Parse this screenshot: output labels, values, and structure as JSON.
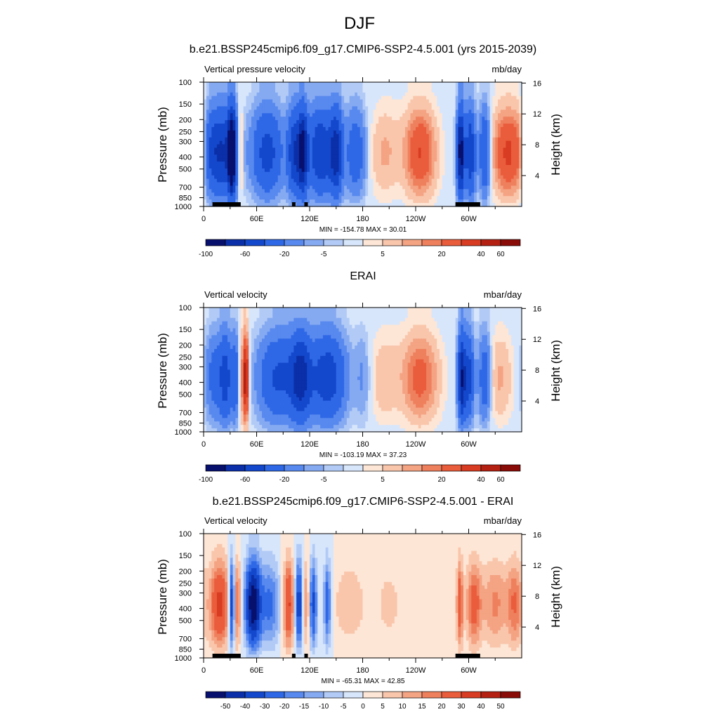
{
  "figure": {
    "title": "DJF",
    "panel1_title": "b.e21.BSSP245cmip6.f09_g17.CMIP6-SSP2-4.5.001 (yrs 2015-2039)",
    "panel2_title": "ERAI",
    "panel3_title": "b.e21.BSSP245cmip6.f09_g17.CMIP6-SSP2-4.5.001 - ERAI"
  },
  "colors": {
    "abs_palette": [
      "#08106e",
      "#0a2fa8",
      "#1448cc",
      "#2f68e6",
      "#5889ee",
      "#86aaf2",
      "#b2cbf6",
      "#d8e6fb",
      "#fde6d6",
      "#f9c6ac",
      "#f4a383",
      "#ef805e",
      "#ea5d3c",
      "#d83c22",
      "#b42112",
      "#8a0c08"
    ],
    "diff_palette": [
      "#08106e",
      "#0a2fa8",
      "#1448cc",
      "#2f68e6",
      "#5889ee",
      "#86aaf2",
      "#b2cbf6",
      "#d8e6fb",
      "#fde6d6",
      "#f9c6ac",
      "#f4a383",
      "#ef805e",
      "#ea5d3c",
      "#d83c22",
      "#b42112",
      "#8a0c08"
    ],
    "land": "#000000"
  },
  "chart_data": [
    {
      "type": "heatmap",
      "title": "b.e21.BSSP245cmip6.f09_g17.CMIP6-SSP2-4.5.001 (yrs 2015-2039)",
      "left_string": "Vertical pressure velocity",
      "right_string": "mb/day",
      "ylabel": "Pressure (mb)",
      "ylabel_right": "Height (km)",
      "x_ticks": [
        "0",
        "60E",
        "120E",
        "180",
        "120W",
        "60W"
      ],
      "x_tick_values": [
        0,
        60,
        120,
        180,
        240,
        300
      ],
      "xlim": [
        0,
        360
      ],
      "y_ticks": [
        "100",
        "150",
        "200",
        "250",
        "300",
        "400",
        "500",
        "700",
        "850",
        "1000"
      ],
      "y_tick_values": [
        100,
        150,
        200,
        250,
        300,
        400,
        500,
        700,
        850,
        1000
      ],
      "ylim": [
        1000,
        100
      ],
      "y_scale": "log",
      "height_ticks": [
        "4",
        "8",
        "12",
        "16"
      ],
      "height_tick_values": [
        4,
        8,
        12,
        16
      ],
      "min_max": "MIN = -154.78  MAX =  30.01",
      "levels": [
        -100,
        -80,
        -60,
        -40,
        -20,
        -10,
        -5,
        -2,
        2,
        5,
        10,
        15,
        20,
        30,
        40,
        60,
        80
      ],
      "colorbar_labels": [
        "-100",
        "-60",
        "-20",
        "-5",
        "5",
        "20",
        "40",
        "60"
      ],
      "colorbar_label_values": [
        -100,
        -60,
        -20,
        -5,
        5,
        20,
        40,
        60
      ],
      "features": [
        {
          "lon": 7,
          "w": 7,
          "amp": -25
        },
        {
          "lon": 22,
          "w": 11,
          "amp": -55
        },
        {
          "lon": 32,
          "w": 3,
          "amp": -95
        },
        {
          "lon": 42,
          "w": 2.5,
          "amp": 18
        },
        {
          "lon": 72,
          "w": 12,
          "amp": -45
        },
        {
          "lon": 102,
          "w": 5,
          "amp": -50
        },
        {
          "lon": 112,
          "w": 4,
          "amp": -80
        },
        {
          "lon": 132,
          "w": 10,
          "amp": -55
        },
        {
          "lon": 150,
          "w": 5,
          "amp": -60
        },
        {
          "lon": 172,
          "w": 8,
          "amp": -30
        },
        {
          "lon": 205,
          "w": 12,
          "amp": 10
        },
        {
          "lon": 245,
          "w": 12,
          "amp": 28
        },
        {
          "lon": 291,
          "w": 3,
          "amp": -85
        },
        {
          "lon": 302,
          "w": 4,
          "amp": -55
        },
        {
          "lon": 318,
          "w": 4,
          "amp": -40
        },
        {
          "lon": 345,
          "w": 12,
          "amp": 30
        },
        {
          "lon": 358,
          "w": 4,
          "amp": 12
        }
      ],
      "land": [
        [
          10,
          42
        ],
        [
          100,
          104
        ],
        [
          114,
          118
        ],
        [
          285,
          313
        ]
      ]
    },
    {
      "type": "heatmap",
      "title": "ERAI",
      "left_string": "Vertical velocity",
      "right_string": "mbar/day",
      "ylabel": "Pressure (mb)",
      "ylabel_right": "Height (km)",
      "x_ticks": [
        "0",
        "60E",
        "120E",
        "180",
        "120W",
        "60W"
      ],
      "x_tick_values": [
        0,
        60,
        120,
        180,
        240,
        300
      ],
      "xlim": [
        0,
        360
      ],
      "y_ticks": [
        "100",
        "150",
        "200",
        "250",
        "300",
        "400",
        "500",
        "700",
        "850",
        "1000"
      ],
      "y_tick_values": [
        100,
        150,
        200,
        250,
        300,
        400,
        500,
        700,
        850,
        1000
      ],
      "ylim": [
        1000,
        100
      ],
      "y_scale": "log",
      "height_ticks": [
        "4",
        "8",
        "12",
        "16"
      ],
      "height_tick_values": [
        4,
        8,
        12,
        16
      ],
      "min_max": "MIN = -103.19  MAX =  37.23",
      "levels": [
        -100,
        -80,
        -60,
        -40,
        -20,
        -10,
        -5,
        -2,
        2,
        5,
        10,
        15,
        20,
        30,
        40,
        60,
        80
      ],
      "colorbar_labels": [
        "-100",
        "-60",
        "-20",
        "-5",
        "5",
        "20",
        "40",
        "60"
      ],
      "colorbar_label_values": [
        -100,
        -60,
        -20,
        -5,
        5,
        20,
        40,
        60
      ],
      "features": [
        {
          "lon": 12,
          "w": 7,
          "amp": -25
        },
        {
          "lon": 25,
          "w": 5,
          "amp": -45
        },
        {
          "lon": 36,
          "w": 3,
          "amp": -30
        },
        {
          "lon": 45,
          "w": 4,
          "amp": 18
        },
        {
          "lon": 48,
          "w": 2,
          "amp": 35
        },
        {
          "lon": 85,
          "w": 16,
          "amp": -40
        },
        {
          "lon": 110,
          "w": 8,
          "amp": -55
        },
        {
          "lon": 140,
          "w": 14,
          "amp": -50
        },
        {
          "lon": 180,
          "w": 6,
          "amp": -10
        },
        {
          "lon": 205,
          "w": 12,
          "amp": 8
        },
        {
          "lon": 245,
          "w": 14,
          "amp": 22
        },
        {
          "lon": 292,
          "w": 3,
          "amp": -70
        },
        {
          "lon": 300,
          "w": 4,
          "amp": -45
        },
        {
          "lon": 318,
          "w": 5,
          "amp": -30
        },
        {
          "lon": 335,
          "w": 10,
          "amp": 10
        }
      ],
      "land": []
    },
    {
      "type": "heatmap",
      "title": "b.e21.BSSP245cmip6.f09_g17.CMIP6-SSP2-4.5.001 - ERAI",
      "left_string": "Vertical velocity",
      "right_string": "mbar/day",
      "ylabel": "Pressure (mb)",
      "ylabel_right": "Height (km)",
      "x_ticks": [
        "0",
        "60E",
        "120E",
        "180",
        "120W",
        "60W"
      ],
      "x_tick_values": [
        0,
        60,
        120,
        180,
        240,
        300
      ],
      "xlim": [
        0,
        360
      ],
      "y_ticks": [
        "100",
        "150",
        "200",
        "250",
        "300",
        "400",
        "500",
        "700",
        "850",
        "1000"
      ],
      "y_tick_values": [
        100,
        150,
        200,
        250,
        300,
        400,
        500,
        700,
        850,
        1000
      ],
      "ylim": [
        1000,
        100
      ],
      "y_scale": "log",
      "height_ticks": [
        "4",
        "8",
        "12",
        "16"
      ],
      "height_tick_values": [
        4,
        8,
        12,
        16
      ],
      "min_max": "MIN = -65.31  MAX =  42.85",
      "levels": [
        -60,
        -50,
        -40,
        -30,
        -20,
        -15,
        -10,
        -5,
        0,
        5,
        10,
        15,
        20,
        30,
        40,
        50,
        60
      ],
      "colorbar_labels": [
        "-50",
        "-40",
        "-30",
        "-20",
        "-15",
        "-10",
        "-5",
        "0",
        "5",
        "10",
        "15",
        "20",
        "30",
        "40",
        "50"
      ],
      "colorbar_label_values": [
        -50,
        -40,
        -30,
        -20,
        -15,
        -10,
        -5,
        0,
        5,
        10,
        15,
        20,
        30,
        40,
        50
      ],
      "features": [
        {
          "lon": 18,
          "w": 8,
          "amp": 30
        },
        {
          "lon": 32,
          "w": 2.5,
          "amp": -40
        },
        {
          "lon": 38,
          "w": 3,
          "amp": 20
        },
        {
          "lon": 56,
          "w": 6,
          "amp": -55
        },
        {
          "lon": 75,
          "w": 8,
          "amp": -20
        },
        {
          "lon": 96,
          "w": 4,
          "amp": 30
        },
        {
          "lon": 108,
          "w": 3,
          "amp": -35
        },
        {
          "lon": 116,
          "w": 3,
          "amp": 15
        },
        {
          "lon": 124,
          "w": 3,
          "amp": -30
        },
        {
          "lon": 140,
          "w": 3,
          "amp": -25
        },
        {
          "lon": 165,
          "w": 14,
          "amp": 8
        },
        {
          "lon": 210,
          "w": 12,
          "amp": 6
        },
        {
          "lon": 290,
          "w": 2.5,
          "amp": 25
        },
        {
          "lon": 306,
          "w": 6,
          "amp": 22
        },
        {
          "lon": 330,
          "w": 10,
          "amp": 15
        },
        {
          "lon": 352,
          "w": 6,
          "amp": 18
        }
      ],
      "land": [
        [
          10,
          42
        ],
        [
          100,
          104
        ],
        [
          114,
          118
        ],
        [
          285,
          313
        ]
      ]
    }
  ]
}
